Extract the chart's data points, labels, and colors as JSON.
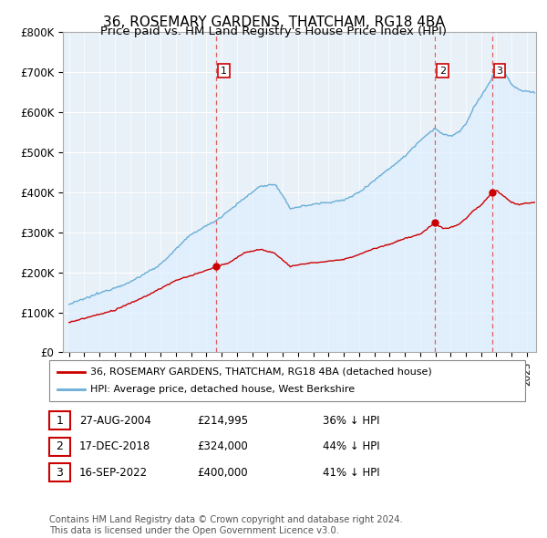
{
  "title": "36, ROSEMARY GARDENS, THATCHAM, RG18 4BA",
  "subtitle": "Price paid vs. HM Land Registry's House Price Index (HPI)",
  "ylim": [
    0,
    800000
  ],
  "yticks": [
    0,
    100000,
    200000,
    300000,
    400000,
    500000,
    600000,
    700000,
    800000
  ],
  "ytick_labels": [
    "£0",
    "£100K",
    "£200K",
    "£300K",
    "£400K",
    "£500K",
    "£600K",
    "£700K",
    "£800K"
  ],
  "hpi_color": "#6baed6",
  "hpi_fill_color": "#ddeeff",
  "sold_color": "#cc0000",
  "vline_color": "#e06060",
  "x_start_year": 1995,
  "x_end_year": 2025,
  "xlim_left": 1994.6,
  "xlim_right": 2025.6,
  "trans_times": [
    2004.646,
    2018.958,
    2022.708
  ],
  "trans_prices": [
    214995,
    324000,
    400000
  ],
  "trans_labels": [
    "1",
    "2",
    "3"
  ],
  "legend_sold_label": "36, ROSEMARY GARDENS, THATCHAM, RG18 4BA (detached house)",
  "legend_hpi_label": "HPI: Average price, detached house, West Berkshire",
  "table_data": [
    [
      "1",
      "27-AUG-2004",
      "£214,995",
      "36% ↓ HPI"
    ],
    [
      "2",
      "17-DEC-2018",
      "£324,000",
      "44% ↓ HPI"
    ],
    [
      "3",
      "16-SEP-2022",
      "£400,000",
      "41% ↓ HPI"
    ]
  ],
  "footnote": "Contains HM Land Registry data © Crown copyright and database right 2024.\nThis data is licensed under the Open Government Licence v3.0.",
  "bg_color": "#ffffff",
  "plot_bg_color": "#e8f0f8",
  "grid_color": "#ffffff",
  "title_fontsize": 11,
  "subtitle_fontsize": 9.5,
  "tick_fontsize": 8.5
}
